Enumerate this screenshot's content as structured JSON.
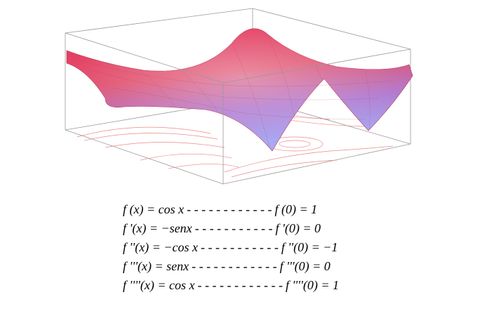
{
  "rows": [
    {
      "left": "f (x) = cos x",
      "dashes": "- - - - - - - - - - - -",
      "right": "f (0) = 1"
    },
    {
      "left": "f '(x) = −senx",
      "dashes": "- - - - - - - - - - -",
      "right": "f '(0) = 0"
    },
    {
      "left": "f ''(x) = −cos x",
      "dashes": "- - - - - - - - - - -",
      "right": "f ''(0) = −1"
    },
    {
      "left": "f '''(x) = senx",
      "dashes": "- - - - - - - - - - - -",
      "right": "f '''(0) = 0"
    },
    {
      "left": "f ''''(x) = cos x",
      "dashes": "- - - - - - - - - - - -",
      "right": "f ''''(0) = 1"
    }
  ]
}
